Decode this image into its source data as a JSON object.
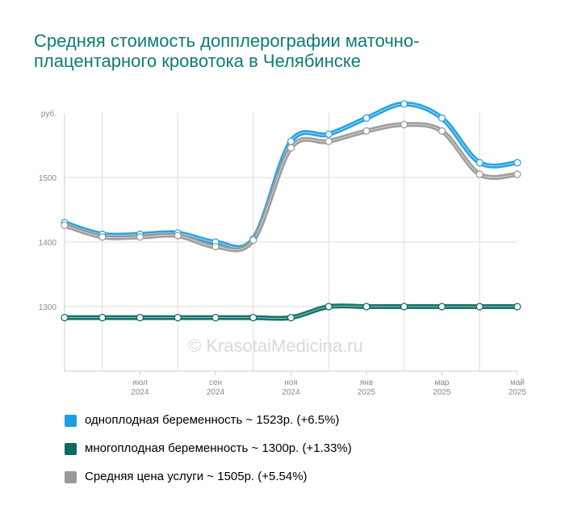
{
  "title": "Средняя стоимость допплерографии маточно-плацентарного кровотока в Челябинске",
  "watermark": "© KrasotaiMedicina.ru",
  "chart_data": {
    "type": "line",
    "title": "Средняя стоимость допплерографии маточно-плацентарного кровотока в Челябинске",
    "ylabel": "руб.",
    "ylim": [
      1200,
      1600
    ],
    "yticks": [
      1300,
      1400,
      1500
    ],
    "grid": true,
    "legend_position": "bottom",
    "x": [
      "2024-05",
      "2024-06",
      "2024-07",
      "2024-08",
      "2024-09",
      "2024-10",
      "2024-11",
      "2024-12",
      "2025-01",
      "2025-02",
      "2025-03",
      "2025-04",
      "2025-05"
    ],
    "xticks": [
      {
        "month": "июл",
        "year": "2024"
      },
      {
        "month": "сен",
        "year": "2024"
      },
      {
        "month": "ноя",
        "year": "2024"
      },
      {
        "month": "янв",
        "year": "2025"
      },
      {
        "month": "мар",
        "year": "2025"
      },
      {
        "month": "май",
        "year": "2025"
      }
    ],
    "series": [
      {
        "name": "однoплодная беременность ~ 1523р. (+6.5%)",
        "color": "#1e9ee0",
        "values": [
          1430,
          1412,
          1412,
          1414,
          1400,
          1405,
          1556,
          1567,
          1592,
          1614,
          1592,
          1523,
          1523
        ]
      },
      {
        "name": "многоплодная беременность ~ 1300р. (+1.33%)",
        "color": "#0b6b63",
        "values": [
          1283,
          1283,
          1283,
          1283,
          1283,
          1283,
          1283,
          1300,
          1300,
          1300,
          1300,
          1300,
          1300
        ]
      },
      {
        "name": "Средняя цена услуги ~ 1505р. (+5.54%)",
        "color": "#999999",
        "values": [
          1426,
          1408,
          1408,
          1410,
          1393,
          1403,
          1546,
          1556,
          1572,
          1582,
          1572,
          1505,
          1505
        ]
      }
    ]
  }
}
